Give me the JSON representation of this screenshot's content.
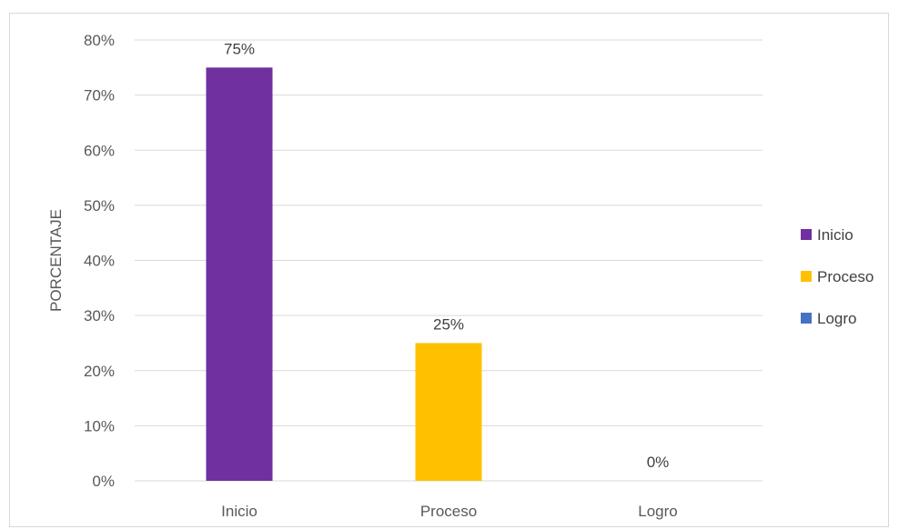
{
  "chart_data": {
    "type": "bar",
    "categories": [
      "Inicio",
      "Proceso",
      "Logro"
    ],
    "values": [
      75,
      25,
      0
    ],
    "data_labels": [
      "75%",
      "25%",
      "0%"
    ],
    "title": "",
    "xlabel": "",
    "ylabel": "PORCENTAJE",
    "ylim": [
      0,
      80
    ],
    "y_ticks": [
      "0%",
      "10%",
      "20%",
      "30%",
      "40%",
      "50%",
      "60%",
      "70%",
      "80%"
    ],
    "y_tick_values": [
      0,
      10,
      20,
      30,
      40,
      50,
      60,
      70,
      80
    ],
    "grid": true,
    "legend": {
      "position": "right",
      "items": [
        {
          "label": "Inicio",
          "color": "#7030a0"
        },
        {
          "label": "Proceso",
          "color": "#ffc000"
        },
        {
          "label": "Logro",
          "color": "#4472c4"
        }
      ]
    },
    "colors": [
      "#7030a0",
      "#ffc000",
      "#4472c4"
    ]
  }
}
